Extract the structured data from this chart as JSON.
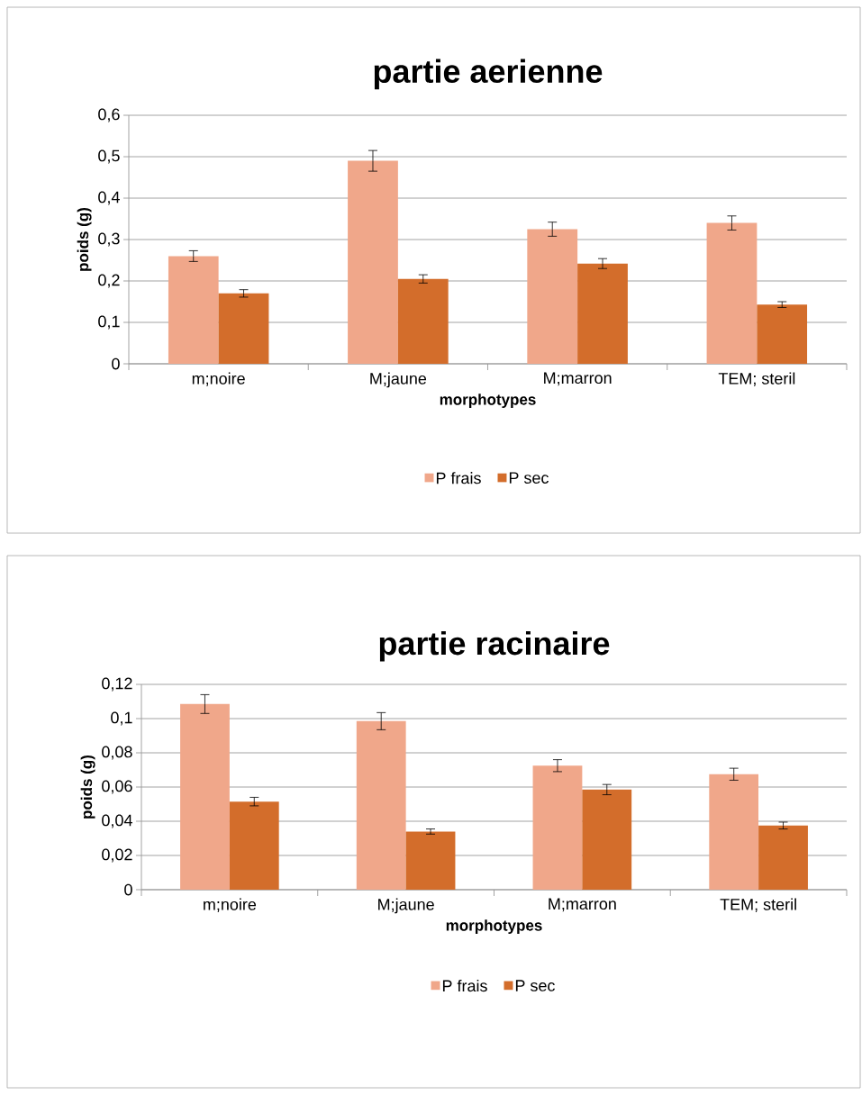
{
  "chart_data": [
    {
      "type": "bar",
      "title": "partie aerienne",
      "xlabel": "morphotypes",
      "ylabel": "poids (g)",
      "categories": [
        "m;noire",
        "M;jaune",
        "M;marron",
        "TEM; steril"
      ],
      "series": [
        {
          "name": "P frais",
          "color": "#f0a78a",
          "values": [
            0.26,
            0.49,
            0.325,
            0.34
          ],
          "errors": [
            0.013,
            0.025,
            0.017,
            0.017
          ]
        },
        {
          "name": "P sec",
          "color": "#d36d2b",
          "values": [
            0.17,
            0.205,
            0.242,
            0.143
          ],
          "errors": [
            0.009,
            0.01,
            0.012,
            0.007
          ]
        }
      ],
      "ylim": [
        0,
        0.6
      ],
      "yticks": [
        0,
        {
          "value": 0.1,
          "label": "0,1"
        },
        {
          "value": 0.2,
          "label": "0,2"
        },
        {
          "value": 0.3,
          "label": "0,3"
        },
        {
          "value": 0.4,
          "label": "0,4"
        },
        {
          "value": 0.5,
          "label": "0,5"
        },
        {
          "value": 0.6,
          "label": "0,6"
        }
      ],
      "grid": "y",
      "legend": "bottom"
    },
    {
      "type": "bar",
      "title": "partie racinaire",
      "xlabel": "morphotypes",
      "ylabel": "poids (g)",
      "categories": [
        "m;noire",
        "M;jaune",
        "M;marron",
        "TEM; steril"
      ],
      "series": [
        {
          "name": "P frais",
          "color": "#f0a78a",
          "values": [
            0.1085,
            0.0985,
            0.0725,
            0.0675
          ],
          "errors": [
            0.0055,
            0.005,
            0.0035,
            0.0035
          ]
        },
        {
          "name": "P sec",
          "color": "#d36d2b",
          "values": [
            0.0515,
            0.034,
            0.0585,
            0.0375
          ],
          "errors": [
            0.0025,
            0.0015,
            0.003,
            0.002
          ]
        }
      ],
      "ylim": [
        0,
        0.12
      ],
      "yticks": [
        0,
        {
          "value": 0.02,
          "label": "0,02"
        },
        {
          "value": 0.04,
          "label": "0,04"
        },
        {
          "value": 0.06,
          "label": "0,06"
        },
        {
          "value": 0.08,
          "label": "0,08"
        },
        {
          "value": 0.1,
          "label": "0,1"
        },
        {
          "value": 0.12,
          "label": "0,12"
        }
      ],
      "grid": "y",
      "legend": "bottom"
    }
  ]
}
